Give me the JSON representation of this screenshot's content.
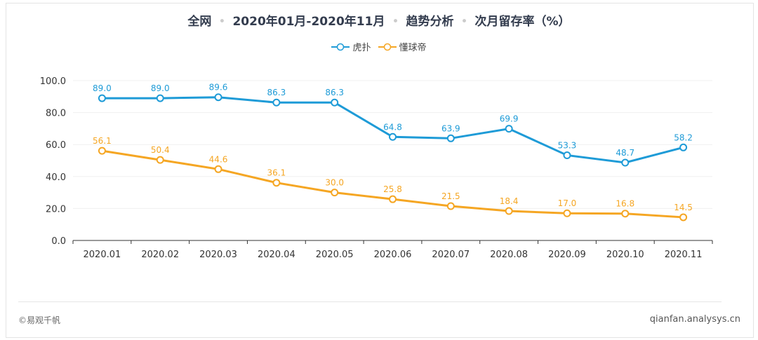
{
  "title": {
    "parts": [
      "全网",
      "2020年01月-2020年11月",
      "趋势分析",
      "次月留存率（%）"
    ]
  },
  "footer": {
    "source": "©易观千帆",
    "site": "qianfan.analysys.cn"
  },
  "chart_data": {
    "type": "line",
    "title": "全网 · 2020年01月-2020年11月 · 趋势分析 · 次月留存率（%）",
    "categories": [
      "2020.01",
      "2020.02",
      "2020.03",
      "2020.04",
      "2020.05",
      "2020.06",
      "2020.07",
      "2020.08",
      "2020.09",
      "2020.10",
      "2020.11"
    ],
    "yticks": [
      "0.0",
      "20.0",
      "40.0",
      "60.0",
      "80.0",
      "100.0"
    ],
    "ylim": [
      0,
      100
    ],
    "grid": true,
    "legend": "top-center",
    "series": [
      {
        "name": "虎扑",
        "color": "#1e9bd7",
        "values": [
          89.0,
          89.0,
          89.6,
          86.3,
          86.3,
          64.8,
          63.9,
          69.9,
          53.3,
          48.7,
          58.2
        ]
      },
      {
        "name": "懂球帝",
        "color": "#f5a623",
        "values": [
          56.1,
          50.4,
          44.6,
          36.1,
          30.0,
          25.8,
          21.5,
          18.4,
          17.0,
          16.8,
          14.5
        ]
      }
    ]
  }
}
